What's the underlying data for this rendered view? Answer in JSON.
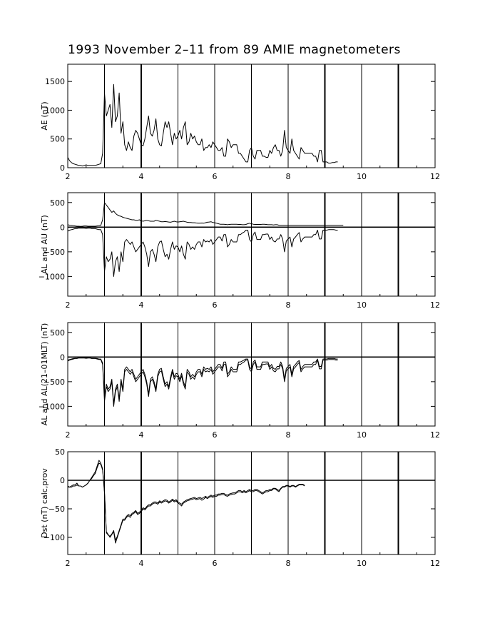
{
  "title": "1993 November 2–11 from 89 AMIE magnetometers",
  "chart_data": [
    {
      "type": "line",
      "ylabel": "AE (nT)",
      "xlim": [
        2,
        12
      ],
      "ylim": [
        0,
        1800
      ],
      "xticks": [
        2,
        4,
        6,
        8,
        10,
        12
      ],
      "yticks": [
        0,
        500,
        1000,
        1500
      ],
      "x_step_days": 0.05,
      "series": [
        {
          "values": [
            180,
            120,
            90,
            70,
            60,
            50,
            40,
            40,
            30,
            40,
            50,
            40,
            40,
            40,
            40,
            40,
            50,
            60,
            70,
            250,
            1300,
            900,
            1000,
            1100,
            700,
            1450,
            800,
            900,
            1300,
            600,
            800,
            400,
            300,
            450,
            350,
            300,
            550,
            650,
            600,
            500,
            400,
            380,
            500,
            700,
            900,
            600,
            550,
            650,
            850,
            500,
            400,
            380,
            600,
            800,
            700,
            800,
            600,
            400,
            600,
            500,
            550,
            650,
            500,
            700,
            800,
            400,
            450,
            600,
            500,
            550,
            450,
            400,
            400,
            500,
            300,
            350,
            350,
            400,
            350,
            450,
            400,
            350,
            300,
            300,
            350,
            200,
            200,
            500,
            450,
            350,
            400,
            400,
            400,
            250,
            250,
            200,
            150,
            100,
            100,
            300,
            350,
            200,
            150,
            300,
            300,
            300,
            200,
            200,
            180,
            180,
            300,
            250,
            350,
            400,
            300,
            300,
            200,
            300,
            650,
            350,
            300,
            250,
            500,
            300,
            250,
            200,
            150,
            350,
            300,
            250,
            250,
            250,
            250,
            250,
            200,
            200,
            100,
            300,
            300,
            100,
            100,
            100,
            80,
            80,
            90,
            90,
            100,
            100
          ]
        }
      ]
    },
    {
      "type": "line",
      "ylabel": "AL and AU (nT)",
      "xlim": [
        2,
        12
      ],
      "ylim": [
        -1400,
        700
      ],
      "xticks": [
        2,
        4,
        6,
        8,
        10,
        12
      ],
      "yticks": [
        -1000,
        -500,
        0,
        500
      ],
      "x_step_days": 0.05,
      "series": [
        {
          "values": [
            50,
            40,
            35,
            30,
            25,
            20,
            20,
            15,
            20,
            25,
            25,
            20,
            20,
            20,
            20,
            20,
            25,
            30,
            35,
            150,
            500,
            450,
            400,
            350,
            300,
            330,
            280,
            250,
            230,
            220,
            200,
            190,
            180,
            170,
            160,
            150,
            150,
            140,
            140,
            150,
            130,
            120,
            130,
            140,
            130,
            120,
            120,
            120,
            140,
            130,
            120,
            110,
            110,
            115,
            110,
            105,
            100,
            110,
            120,
            110,
            105,
            110,
            115,
            120,
            110,
            100,
            95,
            95,
            90,
            90,
            85,
            80,
            80,
            85,
            80,
            90,
            100,
            105,
            110,
            95,
            90,
            80,
            70,
            60,
            60,
            60,
            55,
            50,
            55,
            60,
            60,
            60,
            60,
            55,
            55,
            50,
            50,
            55,
            70,
            80,
            70,
            60,
            55,
            55,
            55,
            55,
            60,
            60,
            55,
            50,
            50,
            50,
            45,
            50,
            50,
            40,
            40,
            40,
            40,
            40,
            40,
            40,
            40,
            40,
            40,
            40,
            40,
            40,
            40,
            40,
            40,
            40,
            40,
            40,
            40,
            40,
            40,
            40,
            40,
            40,
            40,
            40,
            40,
            40,
            40,
            40,
            40,
            40,
            40,
            40,
            40
          ]
        },
        {
          "values": [
            -80,
            -60,
            -50,
            -40,
            -30,
            -30,
            -20,
            -20,
            -20,
            -20,
            -25,
            -20,
            -20,
            -30,
            -30,
            -30,
            -40,
            -50,
            -50,
            -150,
            -900,
            -600,
            -700,
            -650,
            -500,
            -1000,
            -700,
            -600,
            -900,
            -500,
            -700,
            -300,
            -250,
            -300,
            -350,
            -300,
            -400,
            -500,
            -450,
            -400,
            -350,
            -300,
            -400,
            -550,
            -800,
            -500,
            -450,
            -550,
            -700,
            -400,
            -300,
            -280,
            -450,
            -600,
            -550,
            -650,
            -450,
            -300,
            -450,
            -380,
            -400,
            -500,
            -380,
            -550,
            -650,
            -300,
            -350,
            -450,
            -400,
            -450,
            -350,
            -300,
            -300,
            -400,
            -250,
            -300,
            -280,
            -300,
            -250,
            -350,
            -300,
            -250,
            -200,
            -200,
            -280,
            -150,
            -150,
            -400,
            -350,
            -250,
            -300,
            -300,
            -300,
            -150,
            -150,
            -120,
            -100,
            -60,
            -60,
            -250,
            -300,
            -150,
            -100,
            -250,
            -250,
            -250,
            -150,
            -150,
            -140,
            -140,
            -250,
            -200,
            -280,
            -300,
            -240,
            -240,
            -150,
            -240,
            -500,
            -280,
            -240,
            -200,
            -400,
            -240,
            -200,
            -150,
            -110,
            -300,
            -240,
            -200,
            -200,
            -200,
            -200,
            -200,
            -150,
            -150,
            -60,
            -240,
            -240,
            -60,
            -60,
            -60,
            -50,
            -50,
            -50,
            -50,
            -60,
            -60
          ]
        }
      ]
    },
    {
      "type": "line",
      "ylabel": "AL and AL(21–01MLT) (nT)",
      "xlim": [
        2,
        12
      ],
      "ylim": [
        -1400,
        700
      ],
      "xticks": [
        2,
        4,
        6,
        8,
        10,
        12
      ],
      "yticks": [
        -1000,
        -500,
        0,
        500
      ],
      "x_step_days": 0.05,
      "series": [
        {
          "values": [
            -80,
            -60,
            -50,
            -40,
            -30,
            -30,
            -20,
            -20,
            -20,
            -20,
            -25,
            -20,
            -20,
            -30,
            -30,
            -30,
            -40,
            -50,
            -50,
            -150,
            -900,
            -600,
            -700,
            -650,
            -500,
            -1000,
            -700,
            -600,
            -900,
            -500,
            -700,
            -300,
            -250,
            -300,
            -350,
            -300,
            -400,
            -500,
            -450,
            -400,
            -350,
            -300,
            -400,
            -550,
            -800,
            -500,
            -450,
            -550,
            -700,
            -400,
            -300,
            -280,
            -450,
            -600,
            -550,
            -650,
            -450,
            -300,
            -450,
            -380,
            -400,
            -500,
            -380,
            -550,
            -650,
            -300,
            -350,
            -450,
            -400,
            -450,
            -350,
            -300,
            -300,
            -400,
            -250,
            -300,
            -280,
            -300,
            -250,
            -350,
            -300,
            -250,
            -200,
            -200,
            -280,
            -150,
            -150,
            -400,
            -350,
            -250,
            -300,
            -300,
            -300,
            -150,
            -150,
            -120,
            -100,
            -60,
            -60,
            -250,
            -300,
            -150,
            -100,
            -250,
            -250,
            -250,
            -150,
            -150,
            -140,
            -140,
            -250,
            -200,
            -280,
            -300,
            -240,
            -240,
            -150,
            -240,
            -500,
            -280,
            -240,
            -200,
            -400,
            -240,
            -200,
            -150,
            -110,
            -300,
            -240,
            -200,
            -200,
            -200,
            -200,
            -200,
            -150,
            -150,
            -60,
            -240,
            -240,
            -60,
            -60,
            -60,
            -50,
            -50,
            -50,
            -50,
            -60,
            -60
          ]
        },
        {
          "values": [
            -60,
            -50,
            -40,
            -30,
            -25,
            -25,
            -15,
            -15,
            -15,
            -15,
            -20,
            -15,
            -15,
            -25,
            -25,
            -25,
            -30,
            -40,
            -40,
            -120,
            -800,
            -550,
            -650,
            -600,
            -450,
            -950,
            -650,
            -550,
            -850,
            -450,
            -650,
            -250,
            -200,
            -250,
            -300,
            -250,
            -350,
            -450,
            -400,
            -350,
            -300,
            -250,
            -350,
            -500,
            -750,
            -450,
            -400,
            -500,
            -650,
            -350,
            -250,
            -230,
            -400,
            -550,
            -500,
            -600,
            -400,
            -250,
            -400,
            -330,
            -350,
            -450,
            -330,
            -500,
            -600,
            -250,
            -300,
            -400,
            -350,
            -400,
            -300,
            -250,
            -250,
            -350,
            -200,
            -250,
            -230,
            -250,
            -200,
            -300,
            -250,
            -200,
            -150,
            -150,
            -230,
            -100,
            -100,
            -350,
            -300,
            -200,
            -250,
            -250,
            -250,
            -100,
            -100,
            -80,
            -60,
            -40,
            -40,
            -200,
            -250,
            -100,
            -60,
            -200,
            -200,
            -200,
            -100,
            -100,
            -100,
            -100,
            -200,
            -150,
            -230,
            -250,
            -190,
            -190,
            -100,
            -190,
            -450,
            -230,
            -190,
            -150,
            -350,
            -190,
            -150,
            -100,
            -70,
            -250,
            -190,
            -150,
            -150,
            -150,
            -150,
            -150,
            -100,
            -100,
            -40,
            -190,
            -190,
            -40,
            -40,
            -40,
            -30,
            -30,
            -30,
            -30,
            -40,
            -40
          ]
        }
      ]
    },
    {
      "type": "line",
      "ylabel": "Dst (nT) calc,prov",
      "xlim": [
        2,
        12
      ],
      "ylim": [
        -130,
        50
      ],
      "xticks": [
        2,
        4,
        6,
        8,
        10,
        12
      ],
      "yticks": [
        -100,
        -50,
        0,
        50
      ],
      "x_step_days": 0.05,
      "series": [
        {
          "values": [
            -10,
            -12,
            -10,
            -8,
            -8,
            -5,
            -10,
            -10,
            -12,
            -10,
            -8,
            -5,
            0,
            5,
            10,
            15,
            25,
            35,
            30,
            20,
            -20,
            -90,
            -95,
            -100,
            -95,
            -90,
            -110,
            -100,
            -90,
            -80,
            -70,
            -70,
            -65,
            -62,
            -65,
            -60,
            -58,
            -55,
            -60,
            -58,
            -55,
            -50,
            -52,
            -48,
            -45,
            -45,
            -42,
            -40,
            -40,
            -42,
            -38,
            -40,
            -38,
            -36,
            -37,
            -40,
            -38,
            -35,
            -38,
            -36,
            -40,
            -42,
            -45,
            -40,
            -38,
            -36,
            -35,
            -34,
            -33,
            -32,
            -34,
            -33,
            -32,
            -35,
            -33,
            -30,
            -32,
            -30,
            -28,
            -30,
            -28,
            -28,
            -26,
            -26,
            -25,
            -25,
            -27,
            -28,
            -26,
            -25,
            -24,
            -24,
            -22,
            -20,
            -20,
            -22,
            -20,
            -22,
            -20,
            -18,
            -20,
            -20,
            -18,
            -18,
            -20,
            -22,
            -24,
            -22,
            -20,
            -20,
            -18,
            -18,
            -15,
            -15,
            -18,
            -20,
            -15,
            -12,
            -12,
            -10,
            -10,
            -12,
            -10,
            -10,
            -12,
            -10,
            -8,
            -8,
            -8,
            -10
          ]
        },
        {
          "values": [
            -12,
            -12,
            -12,
            -10,
            -10,
            -8,
            -10,
            -10,
            -12,
            -10,
            -8,
            -5,
            0,
            3,
            8,
            12,
            22,
            30,
            28,
            18,
            -22,
            -92,
            -96,
            -98,
            -94,
            -88,
            -105,
            -98,
            -88,
            -78,
            -68,
            -68,
            -63,
            -60,
            -62,
            -58,
            -56,
            -53,
            -58,
            -56,
            -53,
            -48,
            -50,
            -46,
            -43,
            -43,
            -40,
            -38,
            -38,
            -40,
            -36,
            -38,
            -36,
            -34,
            -35,
            -38,
            -36,
            -33,
            -36,
            -34,
            -38,
            -40,
            -42,
            -38,
            -36,
            -34,
            -33,
            -32,
            -31,
            -30,
            -32,
            -31,
            -30,
            -32,
            -30,
            -28,
            -30,
            -28,
            -26,
            -28,
            -26,
            -26,
            -24,
            -24,
            -23,
            -23,
            -25,
            -26,
            -24,
            -23,
            -22,
            -22,
            -20,
            -18,
            -18,
            -20,
            -18,
            -20,
            -18,
            -16,
            -18,
            -18,
            -16,
            -16,
            -18,
            -20,
            -22,
            -20,
            -18,
            -18,
            -16,
            -16,
            -14,
            -14,
            -16,
            -18,
            -14,
            -11,
            -11,
            -9,
            -9,
            -11,
            -9,
            -9,
            -11,
            -9,
            -7,
            -7,
            -7,
            -9
          ]
        }
      ]
    }
  ]
}
